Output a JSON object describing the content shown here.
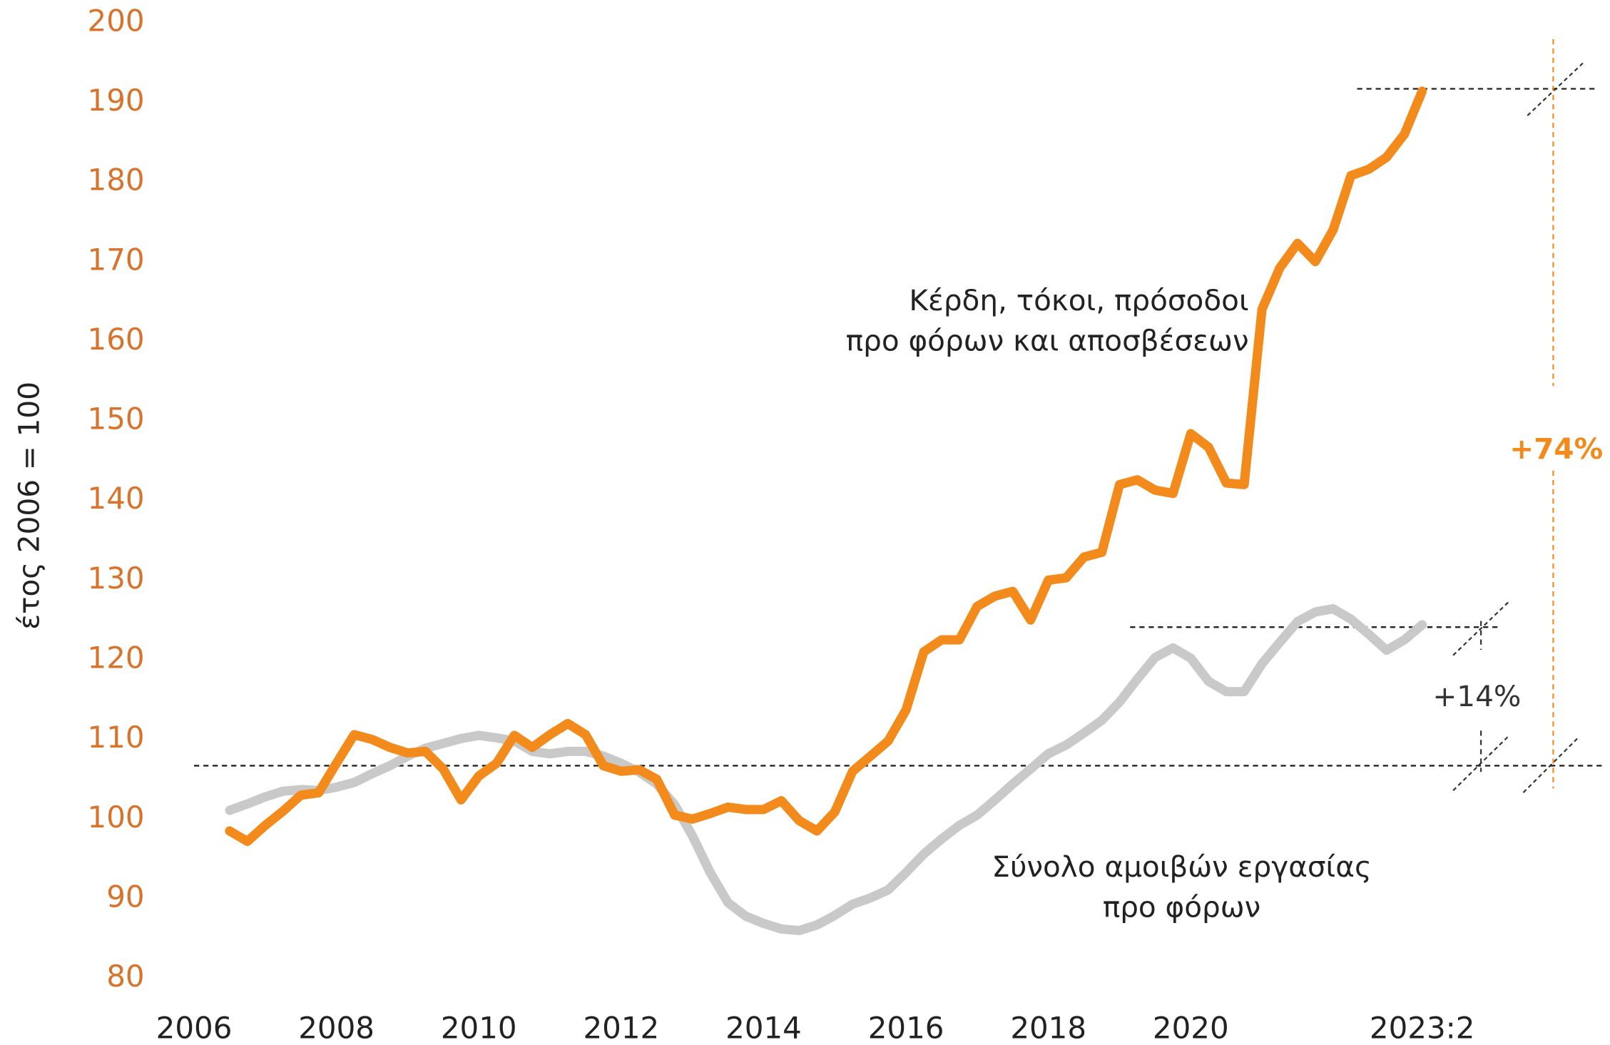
{
  "chart_data": {
    "type": "line",
    "ylabel": "έτος 2006 = 100",
    "x": [
      2006.5,
      2006.75,
      2007,
      2007.25,
      2007.5,
      2007.75,
      2008,
      2008.25,
      2008.5,
      2008.75,
      2009,
      2009.25,
      2009.5,
      2009.75,
      2010,
      2010.25,
      2010.5,
      2010.75,
      2011,
      2011.25,
      2011.5,
      2011.75,
      2012,
      2012.25,
      2012.5,
      2012.75,
      2013,
      2013.25,
      2013.5,
      2013.75,
      2014,
      2014.25,
      2014.5,
      2014.75,
      2015,
      2015.25,
      2015.5,
      2015.75,
      2016,
      2016.25,
      2016.5,
      2016.75,
      2017,
      2017.25,
      2017.5,
      2017.75,
      2018,
      2018.25,
      2018.5,
      2018.75,
      2019,
      2019.25,
      2019.5,
      2019.75,
      2020,
      2020.25,
      2020.5,
      2020.75,
      2021,
      2021.25,
      2021.5,
      2021.75,
      2022,
      2022.25,
      2022.5,
      2022.75,
      2023,
      2023.25
    ],
    "series": [
      {
        "name": [
          "Κέρδη, τόκοι, πρόσοδοι",
          "προ φόρων και αποσβέσεων"
        ],
        "color": "#f28a1c",
        "values": [
          98.5,
          97.2,
          99.2,
          101,
          103,
          103.3,
          107,
          110.6,
          110,
          109,
          108.3,
          108.5,
          106.3,
          102.4,
          105.4,
          107,
          110.5,
          109,
          110.6,
          112,
          110.6,
          106.7,
          106,
          106.2,
          105,
          100.5,
          100,
          100.7,
          101.5,
          101.2,
          101.2,
          102.3,
          99.8,
          98.5,
          100.9,
          106,
          107.9,
          109.8,
          113.7,
          121,
          122.5,
          122.5,
          126.7,
          128,
          128.6,
          125,
          130,
          130.3,
          132.9,
          133.5,
          142,
          142.6,
          141.3,
          140.9,
          148.4,
          146.7,
          142.2,
          142,
          164,
          169.2,
          172.3,
          170,
          174,
          180.8,
          181.6,
          183.1,
          186,
          191.4
        ]
      },
      {
        "name": [
          "Σύνολο αμοιβών εργασίας",
          "προ φόρων"
        ],
        "color": "#c9c9c9",
        "values": [
          101.1,
          101.9,
          102.8,
          103.5,
          103.7,
          103.6,
          104,
          104.6,
          105.7,
          106.7,
          107.9,
          108.9,
          109.5,
          110.1,
          110.5,
          110.2,
          109.8,
          108.5,
          108.2,
          108.5,
          108.5,
          107.9,
          107,
          105.9,
          104.4,
          101.8,
          97.9,
          93.3,
          89.5,
          87.8,
          86.9,
          86.2,
          86,
          86.7,
          87.9,
          89.3,
          90.1,
          91.1,
          93.3,
          95.6,
          97.5,
          99.2,
          100.5,
          102.4,
          104.4,
          106.3,
          108.2,
          109.3,
          110.8,
          112.4,
          114.7,
          117.6,
          120.3,
          121.5,
          120.2,
          117.3,
          116,
          116,
          119.5,
          122.2,
          124.8,
          126,
          126.4,
          125.1,
          123.2,
          121.2,
          122.5,
          124.4
        ]
      }
    ],
    "xlim": [
      2006,
      2023.25
    ],
    "xticks": [
      2006,
      2008,
      2010,
      2012,
      2014,
      2016,
      2018,
      2020,
      {
        "value": 2023.25,
        "label": "2023:2"
      }
    ],
    "ylim": [
      80,
      200
    ],
    "yticks": [
      80,
      90,
      100,
      110,
      120,
      130,
      140,
      150,
      160,
      170,
      180,
      190,
      200
    ],
    "tick_color": "#d9722b",
    "reference_lines": [
      106.7,
      124.1,
      191.7
    ],
    "annotations": [
      {
        "text": "+74%",
        "from": 106.7,
        "to": 191.7,
        "color": "#f28a1c"
      },
      {
        "text": "+14%",
        "from": 106.7,
        "to": 124.1,
        "color": "#333333"
      }
    ]
  }
}
